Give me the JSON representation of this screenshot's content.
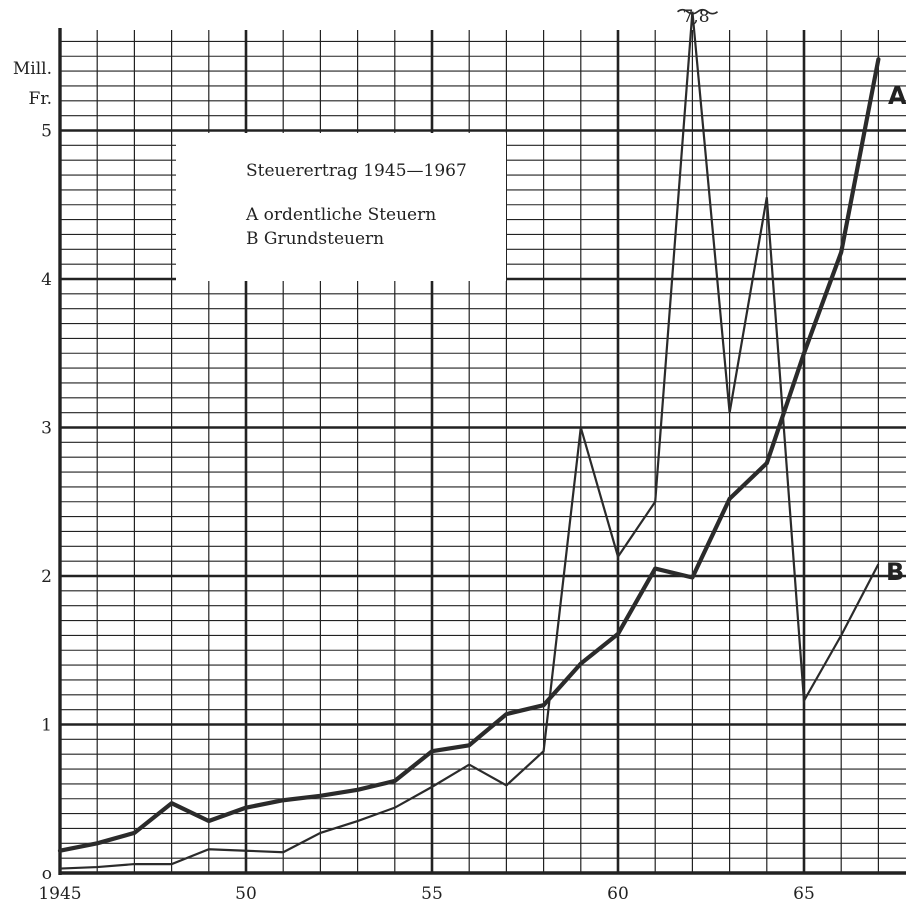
{
  "chart_data": {
    "type": "line",
    "title": "Steuerertrag 1945—1967",
    "ylabel": "Mill.\nFr.",
    "xlim": [
      1945,
      1967.5
    ],
    "ylim": [
      0,
      5.8
    ],
    "grid": true,
    "legend_placement": "upper-left",
    "x": [
      1945,
      1946,
      1947,
      1948,
      1949,
      1950,
      1951,
      1952,
      1953,
      1954,
      1955,
      1956,
      1957,
      1958,
      1959,
      1960,
      1961,
      1962,
      1963,
      1964,
      1965,
      1966,
      1967
    ],
    "series": [
      {
        "name": "A",
        "legend_label": "A  ordentliche Steuern",
        "values": [
          0.15,
          0.2,
          0.27,
          0.47,
          0.35,
          0.44,
          0.49,
          0.52,
          0.56,
          0.62,
          0.82,
          0.86,
          1.07,
          1.13,
          1.41,
          1.61,
          2.05,
          1.99,
          2.52,
          2.76,
          3.5,
          4.18,
          5.48
        ]
      },
      {
        "name": "B",
        "legend_label": "B  Grundsteuern",
        "values": [
          0.03,
          0.04,
          0.06,
          0.06,
          0.16,
          0.15,
          0.14,
          0.27,
          0.35,
          0.44,
          0.58,
          0.73,
          0.59,
          0.82,
          3.0,
          2.13,
          2.5,
          7.8,
          3.1,
          4.55,
          1.16,
          1.6,
          2.08
        ]
      }
    ],
    "annotations": [
      {
        "text": "7,8",
        "x": 1962,
        "note_label": "B peak value"
      }
    ],
    "y_ticks": [
      {
        "v": 0,
        "label": "o"
      },
      {
        "v": 1,
        "label": "1"
      },
      {
        "v": 2,
        "label": "2"
      },
      {
        "v": 3,
        "label": "3"
      },
      {
        "v": 4,
        "label": "4"
      },
      {
        "v": 5,
        "label": "5"
      }
    ],
    "x_ticks": [
      {
        "v": 1945,
        "label": "1945"
      },
      {
        "v": 1950,
        "label": "50"
      },
      {
        "v": 1955,
        "label": "55"
      },
      {
        "v": 1960,
        "label": "60"
      },
      {
        "v": 1965,
        "label": "65"
      }
    ],
    "colors": {
      "grid": "#222222",
      "line": "#2b2b2b",
      "text": "#222222"
    }
  },
  "legend": {
    "title": "Steuerertrag 1945—1967",
    "a": "A  ordentliche Steuern",
    "b": "B  Grundsteuern"
  },
  "axis": {
    "unit_line1": "Mill.",
    "unit_line2": "Fr."
  },
  "series_tags": {
    "a": "A",
    "b": "B"
  },
  "peak_label": "7,8"
}
